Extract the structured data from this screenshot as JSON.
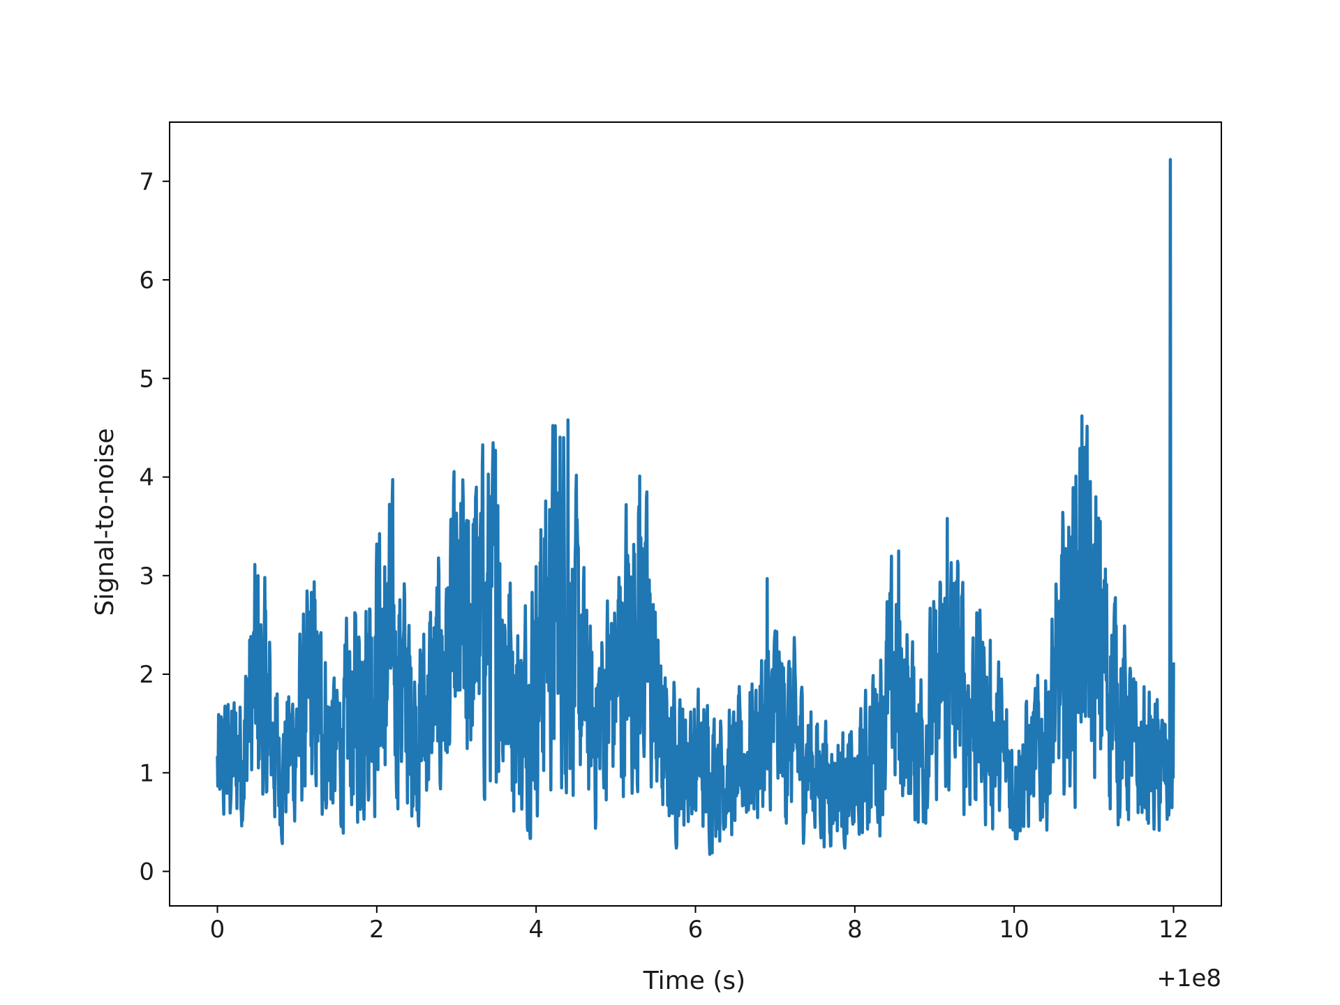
{
  "chart_data": {
    "type": "line",
    "title": "",
    "xlabel": "Time (s)",
    "ylabel": "Signal-to-noise",
    "x_offset_label": "+1e8",
    "xlim": [
      -0.6,
      12.6
    ],
    "ylim": [
      -0.35,
      7.6
    ],
    "xticks": [
      0,
      2,
      4,
      6,
      8,
      10,
      12
    ],
    "xtick_labels": [
      "0",
      "2",
      "4",
      "6",
      "8",
      "10",
      "12"
    ],
    "yticks": [
      0,
      1,
      2,
      3,
      4,
      5,
      6,
      7
    ],
    "ytick_labels": [
      "0",
      "1",
      "2",
      "3",
      "4",
      "5",
      "6",
      "7"
    ],
    "grid": false,
    "legend": "none",
    "series": [
      {
        "color": "#1f77b4",
        "x_start": 0,
        "x_end": 12,
        "envelope": [
          [
            0.0,
            1.0
          ],
          [
            0.3,
            1.2
          ],
          [
            0.5,
            2.0
          ],
          [
            0.8,
            1.0
          ],
          [
            1.2,
            1.8
          ],
          [
            1.5,
            1.2
          ],
          [
            2.1,
            2.4
          ],
          [
            2.5,
            1.4
          ],
          [
            3.1,
            2.5
          ],
          [
            3.5,
            2.6
          ],
          [
            3.8,
            1.5
          ],
          [
            4.3,
            3.0
          ],
          [
            4.7,
            1.4
          ],
          [
            5.3,
            2.6
          ],
          [
            5.6,
            1.2
          ],
          [
            6.0,
            1.1
          ],
          [
            6.5,
            1.0
          ],
          [
            7.0,
            1.6
          ],
          [
            7.5,
            1.0
          ],
          [
            8.0,
            0.8
          ],
          [
            8.5,
            1.9
          ],
          [
            8.8,
            1.3
          ],
          [
            9.2,
            2.0
          ],
          [
            9.6,
            1.6
          ],
          [
            10.0,
            0.9
          ],
          [
            10.4,
            1.3
          ],
          [
            10.8,
            2.8
          ],
          [
            11.1,
            2.2
          ],
          [
            11.5,
            1.2
          ],
          [
            11.9,
            1.0
          ]
        ],
        "peaks": [
          [
            0.51,
            3.0
          ],
          [
            1.18,
            2.83
          ],
          [
            2.1,
            3.09
          ],
          [
            3.13,
            3.56
          ],
          [
            3.52,
            3.71
          ],
          [
            4.4,
            4.58
          ],
          [
            5.3,
            4.01
          ],
          [
            6.9,
            2.97
          ],
          [
            8.55,
            3.25
          ],
          [
            9.16,
            3.58
          ],
          [
            10.85,
            4.62
          ],
          [
            11.08,
            3.55
          ],
          [
            11.96,
            7.22
          ],
          [
            12.0,
            2.12
          ]
        ]
      }
    ]
  }
}
